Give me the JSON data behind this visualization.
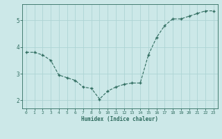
{
  "x": [
    0,
    1,
    2,
    3,
    4,
    5,
    6,
    7,
    8,
    9,
    10,
    11,
    12,
    13,
    14,
    15,
    16,
    17,
    18,
    19,
    20,
    21,
    22,
    23
  ],
  "y": [
    3.8,
    3.8,
    3.7,
    3.5,
    2.95,
    2.85,
    2.75,
    2.5,
    2.45,
    2.05,
    2.35,
    2.5,
    2.6,
    2.65,
    2.65,
    3.7,
    4.35,
    4.8,
    5.05,
    5.05,
    5.15,
    5.25,
    5.35,
    5.35
  ],
  "xlabel": "Humidex (Indice chaleur)",
  "line_color": "#2e6b5e",
  "marker": "+",
  "bg_color": "#cce8e8",
  "grid_color": "#aed4d4",
  "axis_color": "#2e6b5e",
  "tick_color": "#2e6b5e",
  "label_color": "#2e6b5e",
  "ylim": [
    1.7,
    5.6
  ],
  "yticks": [
    2,
    3,
    4,
    5
  ],
  "xticks": [
    0,
    1,
    2,
    3,
    4,
    5,
    6,
    7,
    8,
    9,
    10,
    11,
    12,
    13,
    14,
    15,
    16,
    17,
    18,
    19,
    20,
    21,
    22,
    23
  ],
  "figsize": [
    3.2,
    2.0
  ],
  "dpi": 100
}
